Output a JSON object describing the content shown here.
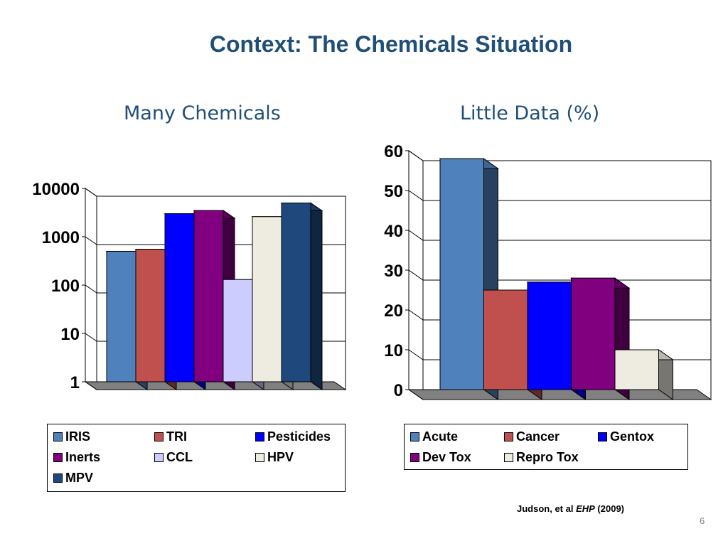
{
  "slide": {
    "title": "Context: The Chemicals Situation",
    "citation_authors": "Judson, et al ",
    "citation_journal": "EHP",
    "citation_year": " (2009)",
    "page_number": "6"
  },
  "chart_data": [
    {
      "type": "bar",
      "title": "Many Chemicals",
      "scale": "log",
      "ylim": [
        1,
        10000
      ],
      "yticks": [
        "10000",
        "1000",
        "100",
        "10",
        "1"
      ],
      "ytick_values": [
        10000,
        1000,
        100,
        10,
        1
      ],
      "grid": true,
      "legend_position": "bottom",
      "series": [
        {
          "name": "IRIS",
          "value": 500,
          "color": "#4f81bd"
        },
        {
          "name": "TRI",
          "value": 550,
          "color": "#c0504d"
        },
        {
          "name": "Pesticides",
          "value": 3000,
          "color": "#0000ff"
        },
        {
          "name": "Inerts",
          "value": 3500,
          "color": "#800080"
        },
        {
          "name": "CCL",
          "value": 130,
          "color": "#ccccff"
        },
        {
          "name": "HPV",
          "value": 2600,
          "color": "#eeece1"
        },
        {
          "name": "MPV",
          "value": 5000,
          "color": "#1f497d"
        }
      ]
    },
    {
      "type": "bar",
      "title": "Little Data (%)",
      "scale": "linear",
      "ylim": [
        0,
        60
      ],
      "yticks": [
        "60",
        "50",
        "40",
        "30",
        "20",
        "10",
        "0"
      ],
      "ytick_values": [
        60,
        50,
        40,
        30,
        20,
        10,
        0
      ],
      "grid": true,
      "legend_position": "bottom",
      "series": [
        {
          "name": "Acute",
          "value": 58,
          "color": "#4f81bd"
        },
        {
          "name": "Cancer",
          "value": 25,
          "color": "#c0504d"
        },
        {
          "name": "Gentox",
          "value": 27,
          "color": "#0000ff"
        },
        {
          "name": "Dev Tox",
          "value": 28,
          "color": "#800080"
        },
        {
          "name": "Repro Tox",
          "value": 10,
          "color": "#eeece1"
        }
      ]
    }
  ]
}
